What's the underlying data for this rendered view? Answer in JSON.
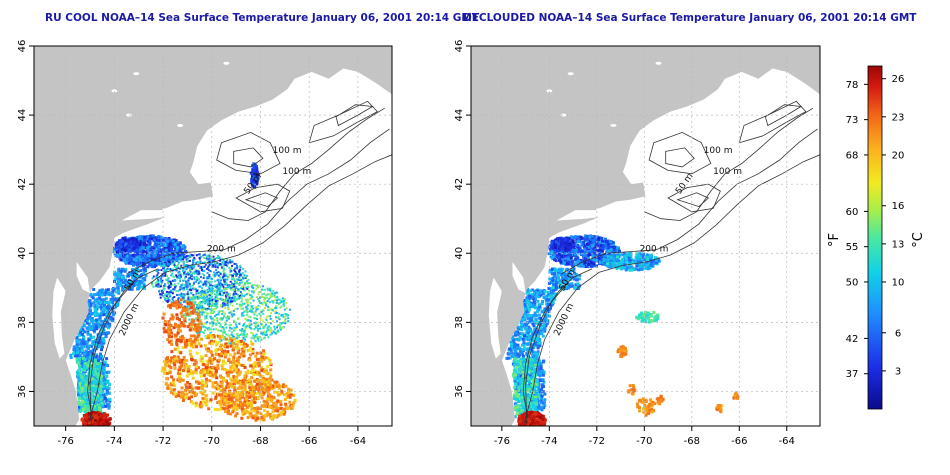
{
  "panels": [
    {
      "title": "RU COOL NOAA–14 Sea Surface Temperature January 06, 2001 20:14 GMT",
      "variant": "raw"
    },
    {
      "title": "DECLOUDED NOAA–14 Sea Surface Temperature January 06, 2001 20:14 GMT",
      "variant": "declouded"
    }
  ],
  "map_axes": {
    "lon_range": [
      -77.3,
      -62.6
    ],
    "lat_range": [
      35,
      46
    ],
    "lon_ticks": [
      "-76",
      "-74",
      "-72",
      "-70",
      "-68",
      "-66",
      "-64"
    ],
    "lat_ticks": [
      "36",
      "38",
      "40",
      "42",
      "44",
      "46"
    ],
    "grid": "dotted"
  },
  "contour_labels": [
    "100 m",
    "100 m",
    "50 m",
    "200 m",
    "50 m",
    "2000 m"
  ],
  "colorbar": {
    "unit_f": "°F",
    "unit_c": "°C",
    "f_ticks": [
      "78",
      "73",
      "68",
      "60",
      "55",
      "50",
      "42",
      "37"
    ],
    "c_ticks": [
      "26",
      "23",
      "20",
      "16",
      "13",
      "10",
      "6",
      "3"
    ],
    "c_range": [
      0,
      27
    ]
  },
  "colors": {
    "land": "#c4c4c4",
    "title": "#1a1aa6",
    "contour": "#333333"
  }
}
